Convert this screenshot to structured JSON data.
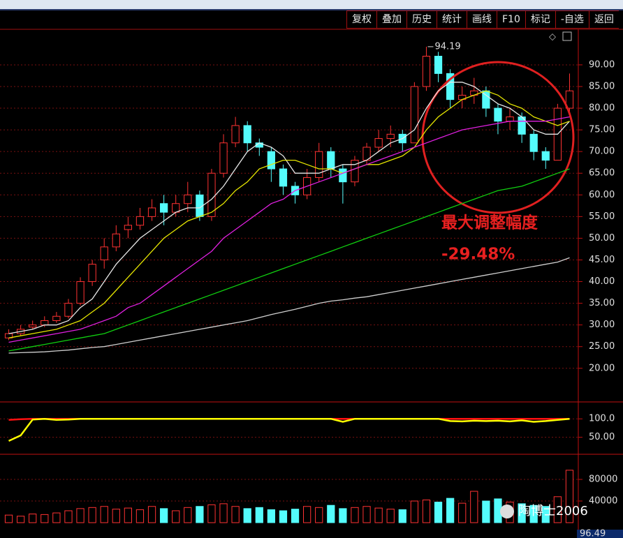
{
  "toolbar": [
    "复权",
    "叠加",
    "历史",
    "统计",
    "画线",
    "F10",
    "标记",
    "-自选",
    "返回"
  ],
  "watermark": "陶博士2006",
  "corner_value": "96.49",
  "chart_data": [
    {
      "type": "candlestick",
      "open": [
        27,
        28,
        29.5,
        30,
        31,
        32,
        35,
        40,
        45,
        48,
        52,
        53,
        55,
        58,
        56,
        58,
        60,
        55,
        65,
        72,
        76,
        72,
        70,
        66,
        62,
        60,
        64,
        70,
        66,
        63,
        68,
        71,
        73,
        74,
        72,
        85,
        92,
        88,
        82,
        83,
        84,
        80,
        77,
        78,
        74,
        70,
        68,
        80
      ],
      "close": [
        28,
        29,
        30,
        31,
        32,
        35,
        40,
        44,
        48,
        51,
        53,
        55,
        57,
        56,
        58,
        60,
        55,
        65,
        72,
        76,
        72,
        71,
        66,
        62,
        60,
        64,
        70,
        66,
        63,
        68,
        71,
        73,
        74,
        72,
        85,
        92,
        88,
        82,
        83,
        84,
        80,
        77,
        78,
        74,
        70,
        68,
        80,
        84
      ],
      "high": [
        29,
        30,
        31,
        32,
        33,
        36,
        41,
        45,
        50,
        53,
        55,
        57,
        59,
        60,
        60,
        63,
        61,
        66,
        74,
        78,
        77,
        73,
        71,
        67,
        63,
        66,
        72,
        71,
        67,
        69,
        72,
        75,
        76,
        75,
        86,
        94.19,
        93,
        89,
        85,
        87,
        85,
        81,
        80,
        79,
        75,
        71,
        81,
        88
      ],
      "low": [
        26.5,
        27.5,
        29,
        29.5,
        30.5,
        31.5,
        34.5,
        39,
        43,
        47,
        50,
        52,
        54,
        53,
        55,
        56,
        54,
        54,
        64,
        71,
        70,
        69,
        63,
        60,
        58,
        59,
        63,
        64,
        58,
        62,
        67,
        70,
        71,
        70,
        72,
        84,
        86,
        80,
        80,
        81,
        78,
        74,
        75,
        72,
        68,
        66,
        68,
        79
      ],
      "up_color": "#ff3232",
      "down_color": "#54fcfc",
      "lines": [
        {
          "color": "#e8e8e8",
          "values": [
            28,
            28.5,
            29,
            30,
            30,
            31,
            34,
            36,
            40,
            44,
            47,
            50,
            52,
            54,
            56,
            57,
            57,
            59,
            62,
            66,
            70,
            72,
            71,
            69,
            65,
            65,
            65,
            66,
            67,
            67,
            68,
            70,
            72,
            73,
            75,
            80,
            84,
            86,
            86,
            85,
            83,
            81,
            80,
            78,
            75,
            74,
            74,
            77
          ]
        },
        {
          "color": "#e6e600",
          "values": [
            27,
            27.5,
            28,
            28.5,
            29,
            30,
            31,
            33,
            35,
            38,
            41,
            44,
            47,
            50,
            52,
            54,
            55,
            56,
            58,
            61,
            63,
            66,
            67,
            68,
            68,
            67,
            66,
            66,
            65,
            66,
            67,
            67,
            68,
            69,
            71,
            75,
            78,
            80,
            82,
            83,
            84,
            83,
            81,
            80,
            78,
            77,
            76,
            77
          ]
        },
        {
          "color": "#e020e0",
          "values": [
            26,
            26.5,
            27,
            27.5,
            28,
            28.5,
            29,
            30,
            31,
            32,
            34,
            35,
            37,
            39,
            41,
            43,
            45,
            47,
            50,
            52,
            54,
            56,
            58,
            59,
            61,
            62,
            63,
            64,
            65,
            66,
            67,
            68,
            69,
            70,
            71,
            72,
            73,
            74,
            75,
            75.5,
            76,
            76.5,
            77,
            77,
            77,
            77,
            77.5,
            78
          ]
        },
        {
          "color": "#10d010",
          "values": [
            24,
            24.5,
            25,
            25.5,
            26,
            26.5,
            27,
            27.5,
            28,
            29,
            30,
            31,
            32,
            33,
            34,
            35,
            36,
            37,
            38,
            39,
            40,
            41,
            42,
            43,
            44,
            45,
            46,
            47,
            48,
            49,
            50,
            51,
            52,
            53,
            54,
            55,
            56,
            57,
            58,
            59,
            60,
            61,
            61.5,
            62,
            63,
            64,
            65,
            66
          ]
        },
        {
          "color": "#cfcfcf",
          "values": [
            23.5,
            23.6,
            23.7,
            23.8,
            24,
            24.2,
            24.5,
            24.8,
            25,
            25.5,
            26,
            26.5,
            27,
            27.5,
            28,
            28.5,
            29,
            29.5,
            30,
            30.5,
            31,
            31.7,
            32.4,
            33,
            33.6,
            34.3,
            35,
            35.5,
            35.8,
            36.2,
            36.5,
            37,
            37.5,
            38,
            38.5,
            39,
            39.5,
            40,
            40.5,
            41,
            41.5,
            42,
            42.5,
            43,
            43.5,
            44,
            44.5,
            45.5
          ]
        }
      ],
      "high_label": "94.19",
      "annotations": [
        "最大调整幅度",
        "-29.48%"
      ],
      "ylim": [
        12.4,
        98.2
      ],
      "yticks": [
        {
          "value": 20,
          "label": "20.00"
        },
        {
          "value": 25,
          "label": "25.00"
        },
        {
          "value": 30,
          "label": "30.00"
        },
        {
          "value": 35,
          "label": "35.00"
        },
        {
          "value": 40,
          "label": "40.00"
        },
        {
          "value": 45,
          "label": "45.00"
        },
        {
          "value": 50,
          "label": "50.00"
        },
        {
          "value": 55,
          "label": "55.00"
        },
        {
          "value": 60,
          "label": "60.00"
        },
        {
          "value": 65,
          "label": "65.00"
        },
        {
          "value": 70,
          "label": "70.00"
        },
        {
          "value": 75,
          "label": "75.00"
        },
        {
          "value": 80,
          "label": "80.00"
        },
        {
          "value": 85,
          "label": "85.00"
        },
        {
          "value": 90,
          "label": "90.00"
        }
      ],
      "grid": true
    },
    {
      "type": "line",
      "series": [
        {
          "color": "#ff1010",
          "values": [
            97,
            99,
            100,
            100,
            100,
            100,
            100,
            100,
            100,
            100,
            100,
            100,
            100,
            100,
            100,
            100,
            100,
            100,
            100,
            100,
            100,
            100,
            100,
            100,
            100,
            100,
            100,
            100,
            100,
            100,
            100,
            100,
            100,
            100,
            100,
            100,
            100,
            100,
            100,
            100,
            100,
            100,
            100,
            100,
            100,
            100,
            100,
            100
          ]
        },
        {
          "color": "#ffff00",
          "values": [
            40,
            55,
            98,
            100,
            97,
            98,
            100,
            100,
            100,
            100,
            100,
            100,
            100,
            100,
            100,
            100,
            100,
            100,
            100,
            100,
            100,
            100,
            100,
            100,
            100,
            100,
            100,
            100,
            92,
            100,
            100,
            100,
            100,
            100,
            100,
            100,
            100,
            94,
            93,
            95,
            94,
            95,
            93,
            96,
            92,
            94,
            97,
            100
          ]
        }
      ],
      "ylim": [
        5.8,
        144
      ],
      "yticks": [
        {
          "value": 50,
          "label": "50.00"
        },
        {
          "value": 100,
          "label": "100.0"
        }
      ],
      "grid": true
    },
    {
      "type": "bar",
      "values": [
        14000,
        12000,
        16000,
        15000,
        18000,
        22000,
        26000,
        28000,
        30000,
        25000,
        27000,
        24000,
        30000,
        26000,
        22000,
        28000,
        30000,
        33000,
        35000,
        30000,
        26000,
        28000,
        24000,
        22000,
        25000,
        30000,
        28000,
        32000,
        26000,
        28000,
        30000,
        27000,
        25000,
        24000,
        40000,
        42000,
        38000,
        45000,
        36000,
        58000,
        40000,
        44000,
        38000,
        35000,
        32000,
        30000,
        48000,
        97000
      ],
      "ylim": [
        -14200,
        125200
      ],
      "yticks": [
        40000,
        80000
      ],
      "grid": true
    }
  ]
}
